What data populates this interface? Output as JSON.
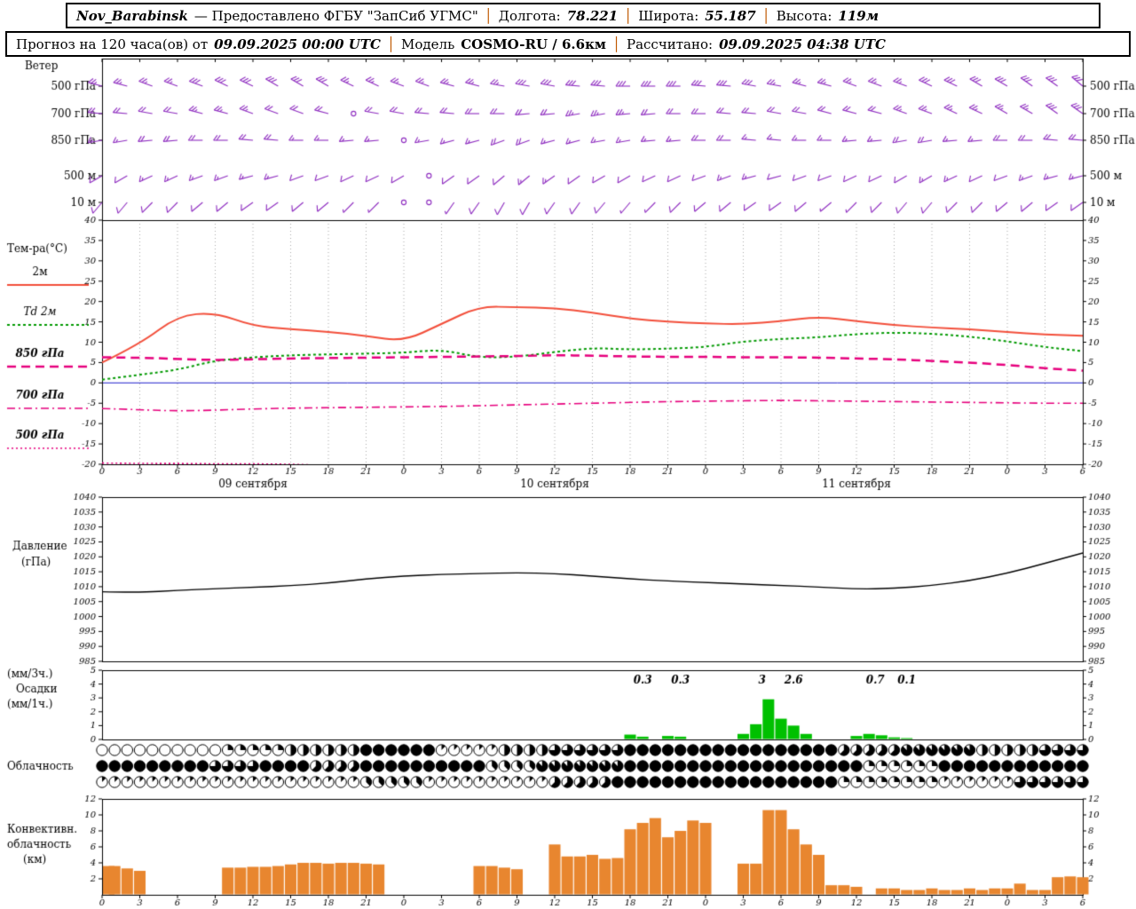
{
  "header": {
    "sep": "│",
    "line1": {
      "station": "Nov_Barabinsk",
      "provider": "— Предоставлено ФГБУ \"ЗапСиб УГМС\"",
      "lon_label": "Долгота:",
      "lon": "78.221",
      "lat_label": "Широта:",
      "lat": "55.187",
      "alt_label": "Высота:",
      "alt": "119м"
    },
    "line2": {
      "forecast_label": "Прогноз на 120 часа(ов) от",
      "start": "09.09.2025 00:00 UTC",
      "model_label": "Модель",
      "model": "COSMO-RU / 6.6км",
      "calc_label": "Рассчитано:",
      "calc": "09.09.2025 04:38 UTC"
    }
  },
  "chart_data": {
    "type": "meteogram",
    "x": {
      "hours": 78,
      "tick_step": 3,
      "hour_label_mod": 24,
      "dates": [
        "09 сентября",
        "10 сентября",
        "11 сентября"
      ],
      "date_center_hours": [
        12,
        36,
        60
      ]
    },
    "wind": {
      "label": "Ветер",
      "color": "#8d2bbf",
      "step_hours": 2,
      "levels": [
        {
          "name": "500 гПа",
          "dirs": [
            285,
            285,
            290,
            290,
            290,
            295,
            295,
            300,
            300,
            300,
            295,
            295,
            290,
            290,
            285,
            285,
            280,
            280,
            280,
            275,
            275,
            270,
            270,
            270,
            275,
            275,
            280,
            280,
            285,
            285,
            290,
            290,
            290,
            295,
            295,
            300,
            300,
            305,
            305,
            310
          ],
          "speeds": [
            12,
            12,
            13,
            13,
            14,
            14,
            15,
            15,
            14,
            14,
            13,
            13,
            12,
            12,
            12,
            13,
            13,
            14,
            14,
            15,
            15,
            16,
            16,
            15,
            15,
            14,
            14,
            13,
            13,
            12,
            12,
            13,
            13,
            14,
            14,
            15,
            15,
            16,
            16,
            16
          ]
        },
        {
          "name": "700 гПа",
          "dirs": [
            275,
            275,
            280,
            280,
            285,
            285,
            290,
            290,
            290,
            285,
            285,
            280,
            280,
            275,
            275,
            270,
            270,
            265,
            265,
            260,
            260,
            265,
            265,
            270,
            270,
            275,
            275,
            280,
            280,
            285,
            285,
            285,
            290,
            290,
            295,
            295,
            300,
            300,
            305,
            305
          ],
          "speeds": [
            10,
            10,
            11,
            11,
            12,
            12,
            12,
            11,
            11,
            10,
            0,
            10,
            10,
            9,
            9,
            10,
            10,
            11,
            11,
            12,
            12,
            12,
            11,
            11,
            10,
            10,
            9,
            9,
            10,
            10,
            11,
            11,
            12,
            12,
            12,
            13,
            13,
            13,
            14,
            14
          ]
        },
        {
          "name": "850 гПа",
          "dirs": [
            260,
            260,
            265,
            265,
            270,
            270,
            275,
            275,
            270,
            270,
            265,
            265,
            260,
            260,
            255,
            255,
            250,
            250,
            255,
            255,
            260,
            260,
            265,
            265,
            270,
            270,
            275,
            275,
            270,
            270,
            265,
            265,
            260,
            260,
            265,
            265,
            270,
            270,
            275,
            275
          ],
          "speeds": [
            8,
            8,
            9,
            9,
            10,
            10,
            9,
            9,
            8,
            8,
            7,
            7,
            0,
            7,
            8,
            8,
            9,
            9,
            8,
            8,
            7,
            7,
            8,
            8,
            9,
            9,
            8,
            8,
            7,
            7,
            8,
            8,
            9,
            9,
            8,
            8,
            9,
            9,
            10,
            10
          ]
        },
        {
          "name": "500 м",
          "dirs": [
            240,
            240,
            245,
            245,
            250,
            250,
            255,
            255,
            250,
            250,
            245,
            245,
            240,
            240,
            235,
            235,
            230,
            230,
            235,
            235,
            240,
            240,
            245,
            245,
            250,
            250,
            255,
            255,
            250,
            250,
            245,
            245,
            240,
            240,
            245,
            245,
            250,
            250,
            255,
            255
          ],
          "speeds": [
            6,
            6,
            7,
            7,
            8,
            8,
            7,
            7,
            6,
            6,
            5,
            5,
            4,
            0,
            5,
            6,
            6,
            7,
            7,
            6,
            6,
            5,
            5,
            6,
            6,
            7,
            7,
            6,
            6,
            5,
            5,
            6,
            6,
            7,
            7,
            6,
            6,
            7,
            7,
            8
          ]
        },
        {
          "name": "10 м",
          "dirs": [
            220,
            220,
            225,
            225,
            230,
            230,
            235,
            235,
            230,
            230,
            225,
            225,
            220,
            220,
            215,
            215,
            210,
            210,
            215,
            215,
            220,
            220,
            225,
            225,
            230,
            230,
            235,
            235,
            230,
            230,
            225,
            225,
            220,
            220,
            225,
            225,
            230,
            230,
            235,
            235
          ],
          "speeds": [
            4,
            4,
            5,
            5,
            6,
            6,
            5,
            5,
            4,
            4,
            3,
            3,
            0,
            0,
            3,
            4,
            4,
            5,
            5,
            4,
            4,
            3,
            3,
            4,
            4,
            5,
            5,
            4,
            4,
            3,
            3,
            4,
            4,
            5,
            5,
            4,
            4,
            5,
            5,
            6
          ]
        }
      ]
    },
    "temperature": {
      "label": "Тем-ра(°C)",
      "ylim": [
        -20,
        40
      ],
      "tick": 5,
      "zero_line_color": "#2222cc",
      "step_hours": 3,
      "series": [
        {
          "label": "2м",
          "color": "#f24e3a",
          "dash": "solid",
          "width": 2,
          "values": [
            5.0,
            9.5,
            16.5,
            17.3,
            14.0,
            13.2,
            12.6,
            11.5,
            10.2,
            14.5,
            18.8,
            18.6,
            18.4,
            17.3,
            15.8,
            15.0,
            14.6,
            14.4,
            15.2,
            16.3,
            15.2,
            14.2,
            13.6,
            13.2,
            12.5,
            11.9,
            11.6
          ]
        },
        {
          "label": "Td 2м",
          "color": "#009900",
          "dash": "shortdash",
          "width": 2,
          "values": [
            0.8,
            2.0,
            3.2,
            5.5,
            6.3,
            6.8,
            7.0,
            7.2,
            7.4,
            8.2,
            6.2,
            6.4,
            7.6,
            8.6,
            8.2,
            8.4,
            8.8,
            10.2,
            10.8,
            11.2,
            12.0,
            12.4,
            12.1,
            11.4,
            10.2,
            8.8,
            7.8
          ]
        },
        {
          "label": "850 гПа",
          "color": "#e6007d",
          "dash": "longdash",
          "width": 2.5,
          "values": [
            6.3,
            6.2,
            5.9,
            5.6,
            5.8,
            6.0,
            6.1,
            6.2,
            6.3,
            6.4,
            6.5,
            6.6,
            6.8,
            6.7,
            6.5,
            6.4,
            6.4,
            6.3,
            6.3,
            6.2,
            6.0,
            5.8,
            5.4,
            5.0,
            4.4,
            3.6,
            3.0
          ]
        },
        {
          "label": "700 гПа",
          "color": "#e6007d",
          "dash": "dashdot",
          "width": 1.6,
          "values": [
            -6.3,
            -6.6,
            -6.9,
            -6.7,
            -6.4,
            -6.2,
            -6.1,
            -6.0,
            -5.9,
            -5.8,
            -5.6,
            -5.4,
            -5.2,
            -5.0,
            -4.8,
            -4.6,
            -4.5,
            -4.4,
            -4.3,
            -4.4,
            -4.5,
            -4.6,
            -4.7,
            -4.8,
            -4.9,
            -5.0,
            -5.0
          ]
        },
        {
          "label": "500 гПа",
          "color": "#e6007d",
          "dash": "dotted",
          "width": 1.6,
          "values": [
            -19.7,
            -19.8,
            -19.8,
            -19.9,
            -19.9,
            -20.0,
            -20.3,
            -20.8,
            -21,
            -21,
            -21,
            -21,
            -21,
            -21,
            -21,
            -21,
            -21,
            -21,
            -21,
            -21,
            -21,
            -21,
            -21,
            -21,
            -21,
            -21,
            -21
          ]
        }
      ]
    },
    "pressure": {
      "label": "Давление",
      "unit_label": "(гПа)",
      "ylim": [
        985,
        1040
      ],
      "tick": 5,
      "color": "#000000",
      "step_hours": 3,
      "values": [
        1008.3,
        1008.0,
        1008.8,
        1009.3,
        1009.8,
        1010.3,
        1011.2,
        1012.6,
        1013.6,
        1014.1,
        1014.4,
        1014.7,
        1014.4,
        1013.6,
        1012.6,
        1011.9,
        1011.4,
        1010.9,
        1010.4,
        1009.9,
        1009.2,
        1009.4,
        1010.4,
        1012.0,
        1014.5,
        1017.8,
        1021.3
      ]
    },
    "precipitation": {
      "label_top": "(мм/3ч.)",
      "label_mid": "Осадки",
      "label_bot": "(мм/1ч.)",
      "ylim": [
        0,
        5
      ],
      "tick": 1,
      "color": "#00c000",
      "step_hours": 1,
      "values": [
        0,
        0,
        0,
        0,
        0,
        0,
        0,
        0,
        0,
        0,
        0,
        0,
        0,
        0,
        0,
        0,
        0,
        0,
        0,
        0,
        0,
        0,
        0,
        0,
        0,
        0,
        0,
        0,
        0,
        0,
        0,
        0,
        0,
        0,
        0,
        0,
        0,
        0,
        0,
        0,
        0,
        0,
        0.35,
        0.2,
        0,
        0.25,
        0.2,
        0,
        0,
        0,
        0,
        0.4,
        1.1,
        2.9,
        1.5,
        1.0,
        0.4,
        0,
        0,
        0,
        0.25,
        0.4,
        0.3,
        0.15,
        0.1,
        0,
        0,
        0,
        0,
        0,
        0,
        0,
        0,
        0,
        0,
        0,
        0,
        0,
        0
      ],
      "annotations": [
        {
          "text": "0.3",
          "hour": 43
        },
        {
          "text": "0.3",
          "hour": 46
        },
        {
          "text": "3",
          "hour": 52.5
        },
        {
          "text": "2.6",
          "hour": 55
        },
        {
          "text": "0.7",
          "hour": 61.5
        },
        {
          "text": "0.1",
          "hour": 64
        }
      ]
    },
    "cloudiness": {
      "label": "Облачность",
      "max_okta": 8,
      "step_hours": 1,
      "rows": [
        [
          0,
          0,
          0,
          0,
          0,
          0,
          0,
          0,
          0,
          0,
          2,
          2,
          2,
          2,
          2,
          4,
          4,
          4,
          4,
          4,
          4,
          8,
          8,
          8,
          8,
          8,
          8,
          1,
          1,
          1,
          1,
          1,
          4,
          4,
          4,
          4,
          6,
          6,
          6,
          6,
          6,
          6,
          8,
          8,
          8,
          8,
          8,
          8,
          8,
          8,
          8,
          8,
          8,
          8,
          8,
          8,
          8,
          8,
          8,
          5,
          5,
          5,
          5,
          5,
          7,
          7,
          7,
          7,
          7,
          7,
          4,
          4,
          4,
          4,
          4,
          6,
          6,
          6,
          6
        ],
        [
          8,
          8,
          8,
          8,
          8,
          8,
          8,
          8,
          8,
          6,
          6,
          6,
          6,
          8,
          8,
          8,
          8,
          5,
          5,
          5,
          5,
          8,
          8,
          8,
          8,
          8,
          8,
          8,
          8,
          8,
          8,
          3,
          3,
          3,
          3,
          7,
          7,
          7,
          7,
          7,
          7,
          7,
          8,
          8,
          8,
          8,
          8,
          8,
          8,
          8,
          8,
          8,
          8,
          8,
          8,
          8,
          8,
          8,
          8,
          8,
          8,
          2,
          2,
          2,
          2,
          2,
          2,
          8,
          8,
          8,
          8,
          8,
          8,
          8,
          8,
          8,
          8,
          8,
          8
        ],
        [
          1,
          1,
          1,
          1,
          1,
          1,
          1,
          1,
          1,
          1,
          1,
          1,
          1,
          1,
          1,
          1,
          1,
          1,
          1,
          1,
          1,
          3,
          3,
          3,
          3,
          3,
          1,
          1,
          1,
          1,
          1,
          1,
          1,
          1,
          1,
          1,
          5,
          5,
          5,
          5,
          5,
          8,
          8,
          8,
          8,
          8,
          8,
          8,
          8,
          8,
          8,
          8,
          8,
          8,
          8,
          8,
          8,
          8,
          8,
          2,
          2,
          2,
          2,
          2,
          2,
          2,
          2,
          1,
          1,
          1,
          1,
          1,
          1,
          6,
          6,
          6,
          6,
          6,
          6
        ]
      ]
    },
    "convective": {
      "labels": [
        "Конвективн.",
        "облачность",
        "(км)"
      ],
      "ylim": [
        0,
        12
      ],
      "tick": 2,
      "color": "#e8862f",
      "step_hours": 1,
      "values": [
        3.6,
        3.6,
        3.3,
        3.0,
        0,
        0,
        0,
        0,
        0,
        0,
        3.4,
        3.4,
        3.5,
        3.5,
        3.6,
        3.8,
        4.0,
        4.0,
        3.9,
        4.0,
        4.0,
        3.9,
        3.8,
        0,
        0,
        0,
        0,
        0,
        0,
        0,
        3.6,
        3.6,
        3.4,
        3.2,
        0,
        0,
        6.3,
        4.8,
        4.8,
        5.0,
        4.5,
        4.6,
        8.2,
        9.0,
        9.6,
        7.2,
        8.0,
        9.3,
        9.0,
        0,
        0,
        3.9,
        3.9,
        10.6,
        10.6,
        8.2,
        6.3,
        5.0,
        1.2,
        1.2,
        1.0,
        0,
        0.8,
        0.8,
        0.6,
        0.6,
        0.8,
        0.6,
        0.6,
        0.8,
        0.6,
        0.8,
        0.8,
        1.4,
        0.6,
        0.6,
        2.2,
        2.3,
        2.2
      ]
    }
  }
}
